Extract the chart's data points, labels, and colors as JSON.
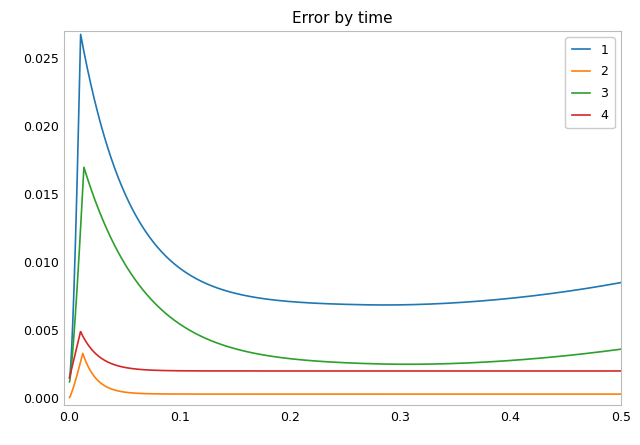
{
  "title": "Error by time",
  "xlim": [
    -0.005,
    0.5
  ],
  "ylim": [
    -0.0005,
    0.027
  ],
  "xticks": [
    0.0,
    0.1,
    0.2,
    0.3,
    0.4,
    0.5
  ],
  "yticks": [
    0.0,
    0.005,
    0.01,
    0.015,
    0.02,
    0.025
  ],
  "legend_labels": [
    "1",
    "2",
    "3",
    "4"
  ],
  "colors": {
    "1": "#1f77b4",
    "2": "#ff7f0e",
    "3": "#2ca02c",
    "4": "#d62728"
  },
  "background_color": "#ffffff",
  "title_fontsize": 11
}
